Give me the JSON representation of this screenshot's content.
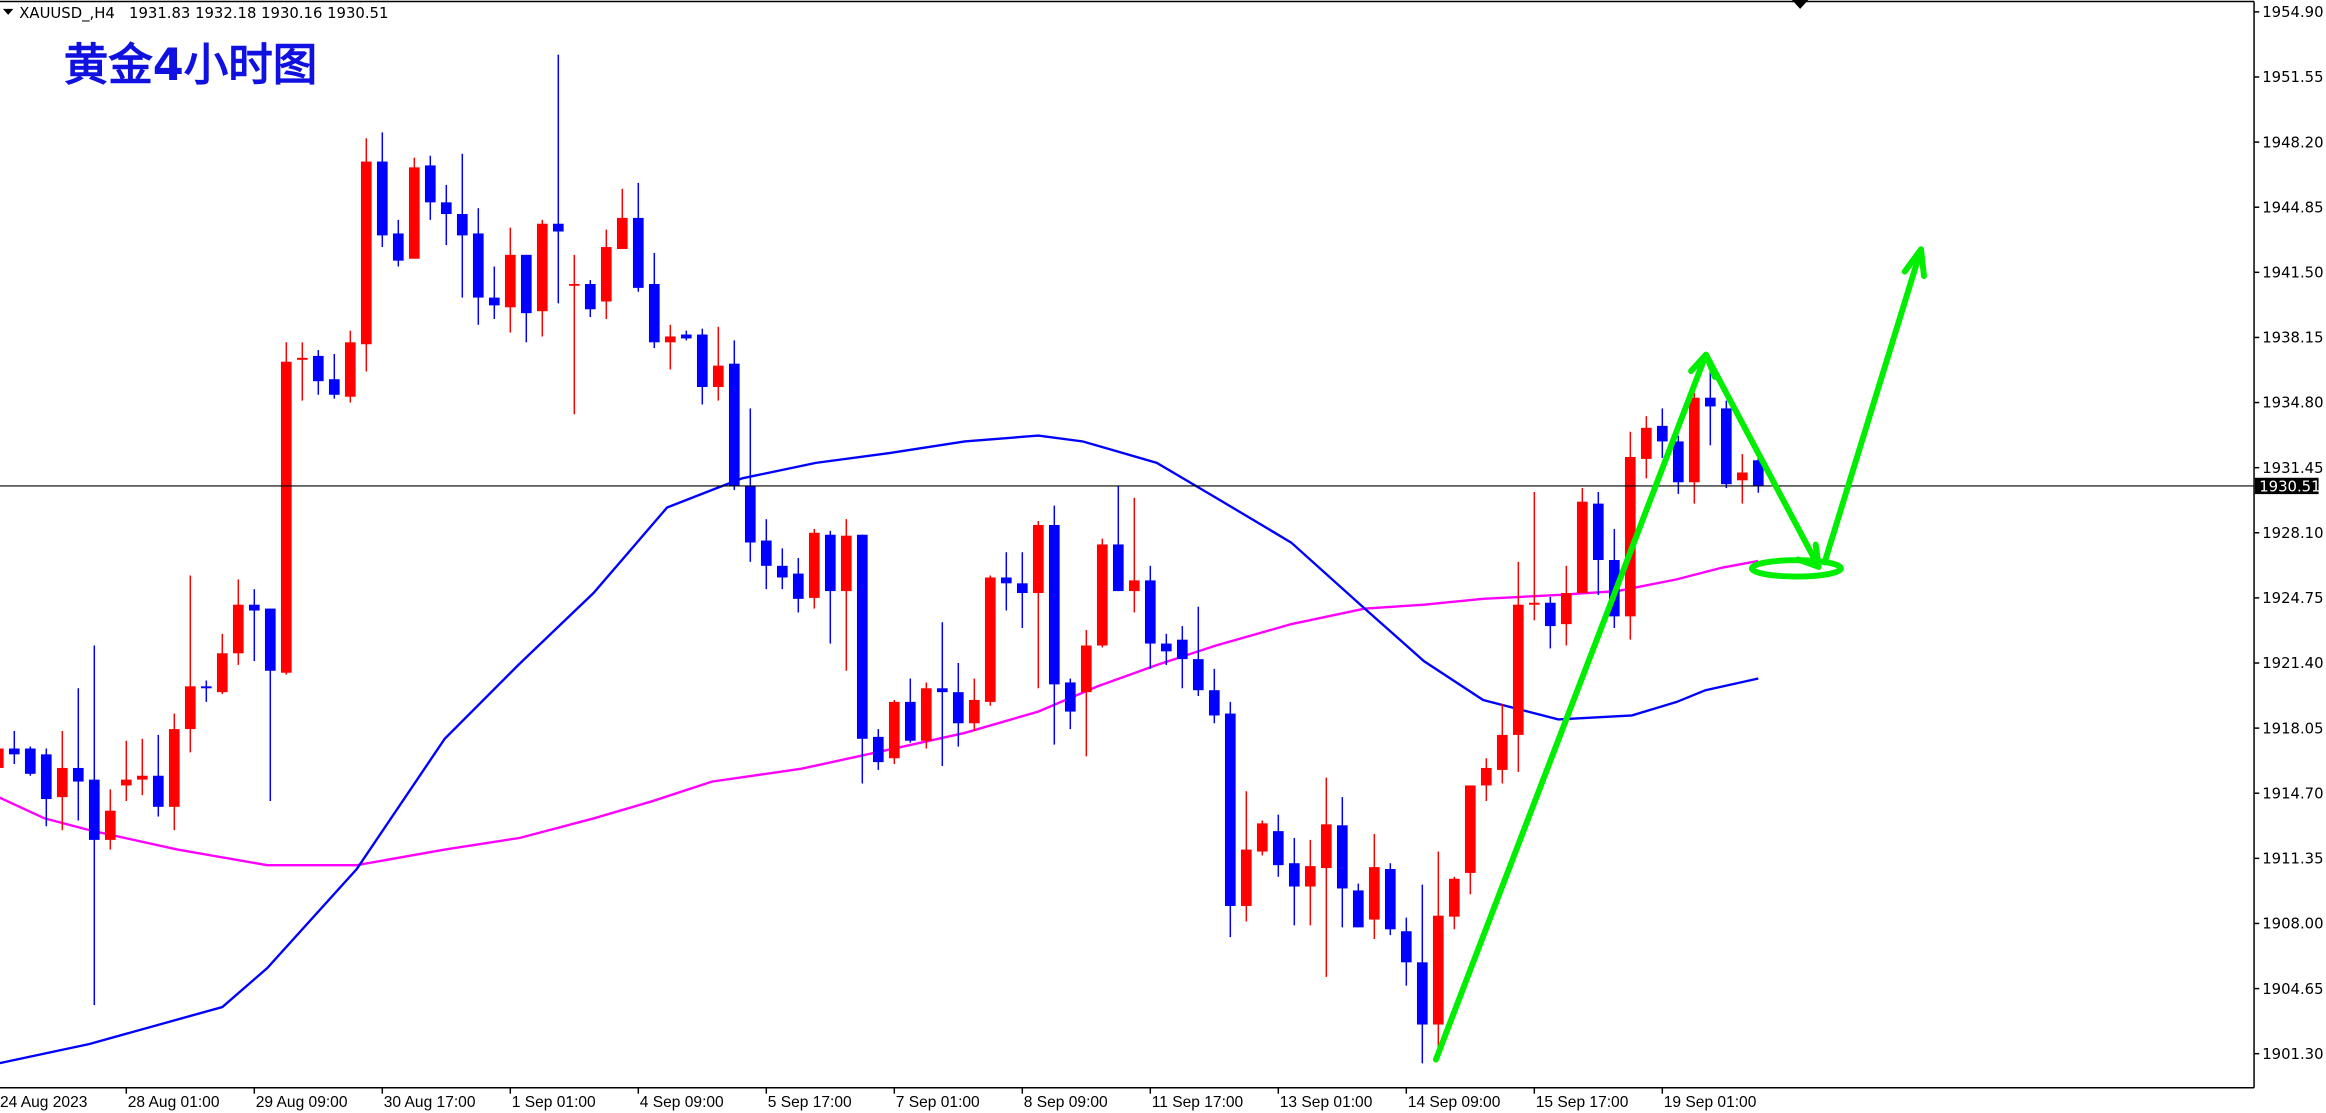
{
  "header": {
    "symbol": "XAUUSD_,H4",
    "ohlc_text": "1931.83 1932.18 1930.16 1930.51"
  },
  "title": "黄金4小时图",
  "colors": {
    "bull": "#ff0000",
    "bear": "#0000ff",
    "ma_fast": "#0000ff",
    "ma_slow": "#ff00ff",
    "annotation": "#00ff00"
  },
  "chart_data": {
    "type": "candlestick",
    "title": "黄金4小时图",
    "symbol": "XAUUSD_",
    "timeframe": "H4",
    "ylim": [
      1899.8,
      1955.4
    ],
    "y_ticks": [
      "1954.90",
      "1951.55",
      "1948.20",
      "1944.85",
      "1941.50",
      "1938.15",
      "1934.80",
      "1931.45",
      "1928.10",
      "1924.75",
      "1921.40",
      "1918.05",
      "1914.70",
      "1911.35",
      "1908.00",
      "1904.65",
      "1901.30"
    ],
    "current_price": 1930.51,
    "current_price_label": "1930.51",
    "time_labels": [
      {
        "label": "24 Aug 2023",
        "bar": 0
      },
      {
        "label": "28 Aug 01:00",
        "bar": 8
      },
      {
        "label": "29 Aug 09:00",
        "bar": 16
      },
      {
        "label": "30 Aug 17:00",
        "bar": 24
      },
      {
        "label": "1 Sep 01:00",
        "bar": 32
      },
      {
        "label": "4 Sep 09:00",
        "bar": 40
      },
      {
        "label": "5 Sep 17:00",
        "bar": 48
      },
      {
        "label": "7 Sep 01:00",
        "bar": 56
      },
      {
        "label": "8 Sep 09:00",
        "bar": 64
      },
      {
        "label": "11 Sep 17:00",
        "bar": 72
      },
      {
        "label": "13 Sep 01:00",
        "bar": 80
      },
      {
        "label": "14 Sep 09:00",
        "bar": 88
      },
      {
        "label": "15 Sep 17:00",
        "bar": 96
      },
      {
        "label": "19 Sep 01:00",
        "bar": 104
      }
    ],
    "candles_ohlc": [
      [
        1916.0,
        1917.3,
        1915.8,
        1917.0
      ],
      [
        1917.0,
        1917.9,
        1916.2,
        1916.7
      ],
      [
        1917.0,
        1917.1,
        1915.6,
        1915.7
      ],
      [
        1916.7,
        1917.0,
        1913.0,
        1914.4
      ],
      [
        1914.5,
        1917.9,
        1912.8,
        1916.0
      ],
      [
        1916.0,
        1920.1,
        1913.3,
        1915.3
      ],
      [
        1915.4,
        1922.3,
        1903.8,
        1912.3
      ],
      [
        1912.3,
        1914.9,
        1911.8,
        1913.8
      ],
      [
        1915.1,
        1917.4,
        1914.3,
        1915.4
      ],
      [
        1915.4,
        1917.5,
        1914.6,
        1915.6
      ],
      [
        1915.6,
        1917.7,
        1913.5,
        1914.0
      ],
      [
        1914.0,
        1918.8,
        1912.8,
        1918.0
      ],
      [
        1918.0,
        1925.9,
        1916.8,
        1920.2
      ],
      [
        1920.2,
        1920.5,
        1919.4,
        1920.1
      ],
      [
        1919.9,
        1922.9,
        1919.8,
        1921.9
      ],
      [
        1921.9,
        1925.7,
        1921.3,
        1924.4
      ],
      [
        1924.4,
        1925.2,
        1921.5,
        1924.1
      ],
      [
        1924.2,
        1924.2,
        1914.3,
        1921.0
      ],
      [
        1920.9,
        1937.9,
        1920.8,
        1936.9
      ],
      [
        1937.0,
        1937.9,
        1934.9,
        1937.1
      ],
      [
        1937.2,
        1937.5,
        1935.2,
        1935.9
      ],
      [
        1936.0,
        1937.3,
        1935.0,
        1935.2
      ],
      [
        1935.1,
        1938.5,
        1934.8,
        1937.9
      ],
      [
        1937.8,
        1948.4,
        1936.4,
        1947.2
      ],
      [
        1947.2,
        1948.7,
        1942.8,
        1943.4
      ],
      [
        1943.5,
        1944.2,
        1941.8,
        1942.1
      ],
      [
        1942.2,
        1947.4,
        1942.2,
        1946.9
      ],
      [
        1947.0,
        1947.5,
        1944.2,
        1945.1
      ],
      [
        1945.1,
        1946.0,
        1942.9,
        1944.5
      ],
      [
        1944.5,
        1947.6,
        1940.2,
        1943.4
      ],
      [
        1943.5,
        1944.8,
        1938.8,
        1940.2
      ],
      [
        1940.2,
        1941.8,
        1939.1,
        1939.8
      ],
      [
        1939.7,
        1943.8,
        1938.4,
        1942.4
      ],
      [
        1942.4,
        1942.4,
        1937.9,
        1939.4
      ],
      [
        1939.5,
        1944.2,
        1938.2,
        1944.0
      ],
      [
        1944.0,
        1952.7,
        1939.9,
        1943.6
      ],
      [
        1940.85,
        1942.4,
        1934.2,
        1940.9
      ],
      [
        1940.9,
        1941.1,
        1939.2,
        1939.6
      ],
      [
        1940.0,
        1943.7,
        1939.1,
        1942.8
      ],
      [
        1942.7,
        1945.8,
        1942.7,
        1944.3
      ],
      [
        1944.3,
        1946.1,
        1940.5,
        1940.7
      ],
      [
        1940.9,
        1942.5,
        1937.6,
        1937.9
      ],
      [
        1937.9,
        1938.8,
        1936.5,
        1938.2
      ],
      [
        1938.3,
        1938.5,
        1938.0,
        1938.1
      ],
      [
        1938.3,
        1938.6,
        1934.7,
        1935.6
      ],
      [
        1935.6,
        1938.7,
        1934.9,
        1936.7
      ],
      [
        1936.8,
        1938.0,
        1930.3,
        1930.5
      ],
      [
        1930.5,
        1934.5,
        1926.6,
        1927.6
      ],
      [
        1927.7,
        1928.8,
        1925.2,
        1926.4
      ],
      [
        1926.4,
        1927.3,
        1925.2,
        1925.8
      ],
      [
        1926.0,
        1926.8,
        1924.0,
        1924.7
      ],
      [
        1924.75,
        1928.3,
        1924.2,
        1928.1
      ],
      [
        1928.0,
        1928.2,
        1922.4,
        1925.1
      ],
      [
        1925.1,
        1928.8,
        1921.0,
        1927.95
      ],
      [
        1928.0,
        1928.0,
        1915.2,
        1917.5
      ],
      [
        1917.6,
        1918.0,
        1915.9,
        1916.3
      ],
      [
        1916.5,
        1919.5,
        1916.2,
        1919.4
      ],
      [
        1919.4,
        1920.6,
        1917.3,
        1917.4
      ],
      [
        1917.4,
        1920.4,
        1917.0,
        1920.1
      ],
      [
        1920.1,
        1923.5,
        1916.1,
        1919.9
      ],
      [
        1919.9,
        1921.4,
        1917.1,
        1918.3
      ],
      [
        1918.3,
        1920.6,
        1917.9,
        1919.5
      ],
      [
        1919.4,
        1925.9,
        1919.2,
        1925.8
      ],
      [
        1925.8,
        1927.1,
        1924.1,
        1925.5
      ],
      [
        1925.5,
        1927.1,
        1923.2,
        1925.0
      ],
      [
        1925.0,
        1928.7,
        1920.1,
        1928.5
      ],
      [
        1928.5,
        1929.5,
        1917.2,
        1920.3
      ],
      [
        1920.4,
        1920.6,
        1918.0,
        1918.9
      ],
      [
        1919.9,
        1923.1,
        1916.6,
        1922.3
      ],
      [
        1922.3,
        1927.8,
        1922.2,
        1927.5
      ],
      [
        1927.5,
        1930.5,
        1925.1,
        1925.1
      ],
      [
        1925.1,
        1929.9,
        1924.0,
        1925.65
      ],
      [
        1925.65,
        1926.4,
        1921.1,
        1922.4
      ],
      [
        1922.4,
        1922.9,
        1921.3,
        1922.0
      ],
      [
        1922.6,
        1923.3,
        1920.1,
        1921.6
      ],
      [
        1921.6,
        1924.3,
        1919.7,
        1920.0
      ],
      [
        1920.0,
        1921.1,
        1918.3,
        1918.7
      ],
      [
        1918.8,
        1919.4,
        1907.3,
        1908.9
      ],
      [
        1908.9,
        1914.8,
        1908.1,
        1911.8
      ],
      [
        1911.7,
        1913.3,
        1911.5,
        1913.15
      ],
      [
        1912.75,
        1913.6,
        1910.4,
        1911.0
      ],
      [
        1911.1,
        1912.4,
        1907.9,
        1909.9
      ],
      [
        1909.9,
        1912.3,
        1907.9,
        1910.95
      ],
      [
        1910.85,
        1915.5,
        1905.25,
        1913.1
      ],
      [
        1913.05,
        1914.5,
        1907.8,
        1909.8
      ],
      [
        1909.7,
        1910.05,
        1907.8,
        1907.8
      ],
      [
        1908.2,
        1912.6,
        1907.2,
        1910.9
      ],
      [
        1910.8,
        1911.1,
        1907.4,
        1907.7
      ],
      [
        1907.6,
        1908.3,
        1904.8,
        1906.0
      ],
      [
        1906.0,
        1910.0,
        1900.8,
        1902.8
      ],
      [
        1902.8,
        1911.7,
        1901.4,
        1908.4
      ],
      [
        1908.35,
        1910.4,
        1907.7,
        1910.3
      ],
      [
        1910.6,
        1915.1,
        1909.5,
        1915.1
      ],
      [
        1915.1,
        1916.5,
        1914.3,
        1916.0
      ],
      [
        1915.9,
        1919.3,
        1915.2,
        1917.7
      ],
      [
        1917.7,
        1926.6,
        1915.8,
        1924.4
      ],
      [
        1924.4,
        1930.2,
        1923.6,
        1924.5
      ],
      [
        1924.5,
        1924.8,
        1922.15,
        1923.3
      ],
      [
        1923.4,
        1926.4,
        1922.3,
        1925.0
      ],
      [
        1925.0,
        1930.4,
        1925.0,
        1929.7
      ],
      [
        1929.6,
        1930.2,
        1924.9,
        1926.7
      ],
      [
        1926.7,
        1928.3,
        1923.2,
        1923.8
      ],
      [
        1923.8,
        1933.3,
        1922.6,
        1932.0
      ],
      [
        1931.9,
        1934.1,
        1930.9,
        1933.5
      ],
      [
        1933.6,
        1934.5,
        1931.95,
        1932.8
      ],
      [
        1932.8,
        1933.1,
        1930.1,
        1930.7
      ],
      [
        1930.7,
        1935.3,
        1929.6,
        1935.05
      ],
      [
        1935.05,
        1936.5,
        1932.6,
        1934.6
      ],
      [
        1934.5,
        1934.9,
        1930.4,
        1930.6
      ],
      [
        1930.8,
        1932.15,
        1929.6,
        1931.2
      ],
      [
        1931.83,
        1932.18,
        1930.16,
        1930.51
      ]
    ],
    "ma_fast": [
      [
        0,
        1900.8
      ],
      [
        5.7,
        1901.8
      ],
      [
        14,
        1903.7
      ],
      [
        16.8,
        1905.7
      ],
      [
        22.4,
        1910.8
      ],
      [
        27.9,
        1917.5
      ],
      [
        32.5,
        1921.3
      ],
      [
        37.2,
        1925.0
      ],
      [
        41.8,
        1929.4
      ],
      [
        44.6,
        1930.3
      ],
      [
        46.5,
        1930.9
      ],
      [
        51.1,
        1931.7
      ],
      [
        55.7,
        1932.2
      ],
      [
        60.4,
        1932.8
      ],
      [
        65,
        1933.1
      ],
      [
        67.8,
        1932.8
      ],
      [
        72.4,
        1931.7
      ],
      [
        76.1,
        1929.9
      ],
      [
        80.8,
        1927.6
      ],
      [
        85.4,
        1924.2
      ],
      [
        89.1,
        1921.5
      ],
      [
        92.8,
        1919.5
      ],
      [
        97.5,
        1918.5
      ],
      [
        102.1,
        1918.7
      ],
      [
        104.9,
        1919.4
      ],
      [
        106.7,
        1920.0
      ],
      [
        110,
        1920.6
      ]
    ],
    "ma_slow": [
      [
        0,
        1914.5
      ],
      [
        2.9,
        1913.4
      ],
      [
        5.7,
        1912.8
      ],
      [
        11.2,
        1911.8
      ],
      [
        16.8,
        1911.0
      ],
      [
        22.4,
        1911.0
      ],
      [
        27.9,
        1911.8
      ],
      [
        32.6,
        1912.4
      ],
      [
        37.2,
        1913.4
      ],
      [
        40.9,
        1914.3
      ],
      [
        44.6,
        1915.3
      ],
      [
        50.2,
        1915.96
      ],
      [
        55.7,
        1916.95
      ],
      [
        60.4,
        1917.8
      ],
      [
        65,
        1918.9
      ],
      [
        68.7,
        1920.2
      ],
      [
        72.4,
        1921.3
      ],
      [
        76.1,
        1922.3
      ],
      [
        80.8,
        1923.4
      ],
      [
        85.4,
        1924.2
      ],
      [
        89.1,
        1924.4
      ],
      [
        92.8,
        1924.7
      ],
      [
        97.5,
        1924.9
      ],
      [
        101.2,
        1925.1
      ],
      [
        104.9,
        1925.7
      ],
      [
        107.7,
        1926.3
      ],
      [
        110,
        1926.65
      ]
    ]
  }
}
